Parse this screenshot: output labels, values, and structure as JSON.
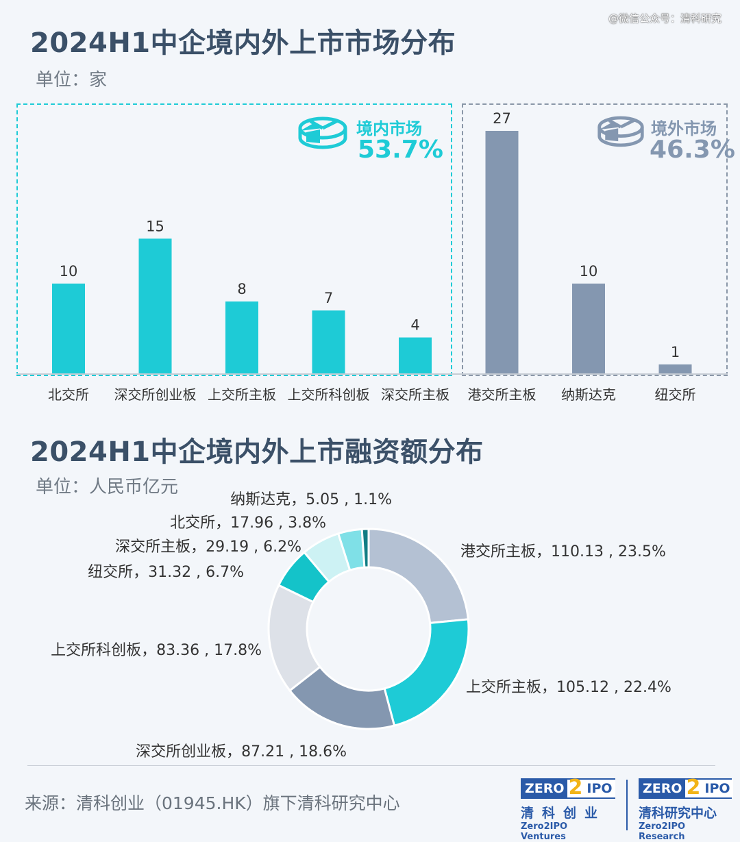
{
  "watermark": "@微信公众号：清科研究",
  "title1": "2024H1中企境内外上市市场分布",
  "unit1": "单位：家",
  "domestic": {
    "name": "境内市场",
    "pct": "53.7%",
    "color": "#1ecbd6",
    "icon": "pie-chart-icon"
  },
  "overseas": {
    "name": "境外市场",
    "pct": "46.3%",
    "color": "#8497b0",
    "icon": "pie-chart-icon"
  },
  "title2": "2024H1中企境内外上市融资额分布",
  "unit2": "单位：人民币亿元",
  "source": "来源：清科创业（01945.HK）旗下清科研究中心",
  "logos": {
    "left": {
      "zero": "ZERO",
      "two": "2",
      "ipo": "IPO",
      "cn": "清科创业",
      "en": "Zero2IPO Ventures"
    },
    "right": {
      "zero": "ZERO",
      "two": "2",
      "ipo": "IPO",
      "cn": "清科研究中心",
      "en": "Zero2IPO Research"
    }
  },
  "chart_data": [
    {
      "type": "bar",
      "categories": [
        "北交所",
        "深交所创业板",
        "上交所主板",
        "上交所科创板",
        "深交所主板",
        "港交所主板",
        "纳斯达克",
        "纽交所"
      ],
      "values": [
        10,
        15,
        8,
        7,
        4,
        27,
        10,
        1
      ],
      "colors": [
        "#1ecbd6",
        "#1ecbd6",
        "#1ecbd6",
        "#1ecbd6",
        "#1ecbd6",
        "#8497b0",
        "#8497b0",
        "#8497b0"
      ],
      "ylim": [
        0,
        27
      ]
    },
    {
      "type": "pie",
      "donut": true,
      "slices": [
        {
          "label": "港交所主板",
          "value": 110.13,
          "pct": "23.5%",
          "color": "#b4c1d3",
          "text": "港交所主板，110.13 , 23.5%"
        },
        {
          "label": "上交所主板",
          "value": 105.12,
          "pct": "22.4%",
          "color": "#1ecbd6",
          "text": "上交所主板，105.12 , 22.4%"
        },
        {
          "label": "深交所创业板",
          "value": 87.21,
          "pct": "18.6%",
          "color": "#8497b0",
          "text": "深交所创业板，87.21 , 18.6%"
        },
        {
          "label": "上交所科创板",
          "value": 83.36,
          "pct": "17.8%",
          "color": "#dde1e8",
          "text": "上交所科创板，83.36 , 17.8%"
        },
        {
          "label": "纽交所",
          "value": 31.32,
          "pct": "6.7%",
          "color": "#14c3c9",
          "text": "纽交所，31.32 , 6.7%"
        },
        {
          "label": "深交所主板",
          "value": 29.19,
          "pct": "6.2%",
          "color": "#cdf2f4",
          "text": "深交所主板，29.19 , 6.2%"
        },
        {
          "label": "北交所",
          "value": 17.96,
          "pct": "3.8%",
          "color": "#7fe0e7",
          "text": "北交所，17.96 , 3.8%"
        },
        {
          "label": "纳斯达克",
          "value": 5.05,
          "pct": "1.1%",
          "color": "#117d84",
          "text": "纳斯达克，5.05 , 1.1%"
        }
      ]
    }
  ]
}
